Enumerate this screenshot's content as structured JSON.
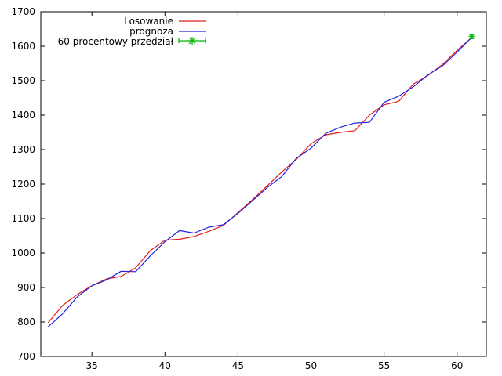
{
  "chart_data": {
    "type": "line",
    "title": "",
    "xlabel": "",
    "ylabel": "",
    "xlim": [
      31.5,
      62
    ],
    "ylim": [
      700,
      1700
    ],
    "xticks": [
      35,
      40,
      45,
      50,
      55,
      60
    ],
    "yticks": [
      700,
      800,
      900,
      1000,
      1100,
      1200,
      1300,
      1400,
      1500,
      1600,
      1700
    ],
    "grid": false,
    "legend_position": "top-left",
    "series": [
      {
        "name": "Losowanie",
        "color": "#e41a1c",
        "x": [
          32,
          33,
          34,
          35,
          36,
          37,
          38,
          39,
          40,
          41,
          42,
          43,
          44,
          45,
          46,
          47,
          48,
          49,
          50,
          51,
          52,
          53,
          54,
          55,
          56,
          57,
          58,
          59,
          60,
          61
        ],
        "y": [
          798,
          848,
          880,
          905,
          925,
          932,
          957,
          1007,
          1037,
          1040,
          1048,
          1063,
          1080,
          1117,
          1155,
          1195,
          1235,
          1272,
          1317,
          1343,
          1350,
          1355,
          1400,
          1430,
          1440,
          1490,
          1515,
          1547,
          1588,
          1625
        ]
      },
      {
        "name": "prognoza",
        "color": "#2222e0",
        "x": [
          32,
          33,
          34,
          35,
          36,
          37,
          38,
          39,
          40,
          41,
          42,
          43,
          44,
          45,
          46,
          47,
          48,
          49,
          50,
          51,
          52,
          53,
          54,
          55,
          56,
          57,
          58,
          59,
          60,
          61
        ],
        "y": [
          786,
          824,
          873,
          905,
          922,
          947,
          946,
          992,
          1033,
          1065,
          1058,
          1075,
          1082,
          1115,
          1152,
          1190,
          1222,
          1275,
          1304,
          1347,
          1365,
          1377,
          1379,
          1437,
          1455,
          1482,
          1517,
          1543,
          1583,
          1626
        ]
      },
      {
        "name": "60 procentowy przedział",
        "color": "#00b400",
        "type": "errorbar",
        "x": [
          61
        ],
        "y": [
          1629
        ],
        "yerr_low": [
          1622
        ],
        "yerr_high": [
          1635
        ]
      }
    ]
  }
}
